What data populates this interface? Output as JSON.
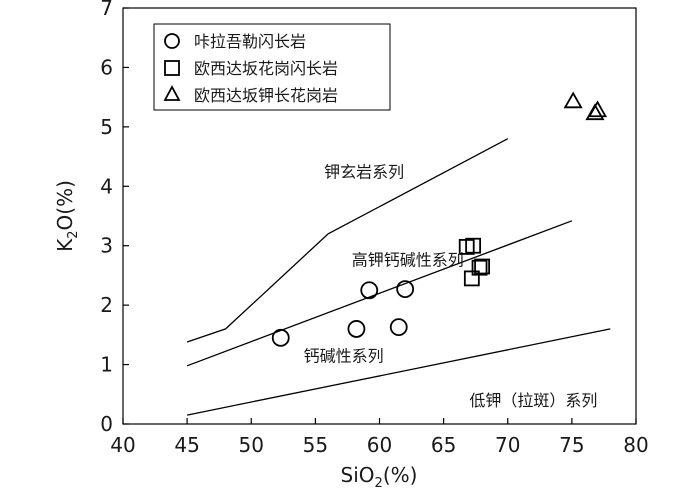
{
  "chart_data": {
    "type": "scatter",
    "title": "",
    "xlabel": {
      "base": "SiO",
      "sub": "2",
      "rest": "(%)"
    },
    "ylabel": {
      "base": "K",
      "sub": "2",
      "rest": "O(%)"
    },
    "xlim": [
      40,
      80
    ],
    "ylim": [
      0,
      7
    ],
    "xticks": [
      40,
      45,
      50,
      55,
      60,
      65,
      70,
      75,
      80
    ],
    "yticks": [
      0,
      1,
      2,
      3,
      4,
      5,
      6,
      7
    ],
    "grid": false,
    "legend": {
      "position": "top-left",
      "entries": [
        {
          "marker": "circle",
          "label": "咔拉吾勒闪长岩"
        },
        {
          "marker": "square",
          "label": "欧西达坂花岗闪长岩"
        },
        {
          "marker": "triangle",
          "label": "欧西达坂钾长花岗岩"
        }
      ]
    },
    "series": [
      {
        "name": "咔拉吾勒闪长岩",
        "marker": "circle",
        "points": [
          [
            52.3,
            1.45
          ],
          [
            58.2,
            1.6
          ],
          [
            59.2,
            2.25
          ],
          [
            61.5,
            1.63
          ],
          [
            62.0,
            2.27
          ]
        ]
      },
      {
        "name": "欧西达坂花岗闪长岩",
        "marker": "square",
        "points": [
          [
            66.8,
            2.98
          ],
          [
            67.3,
            3.0
          ],
          [
            67.2,
            2.45
          ],
          [
            67.8,
            2.63
          ],
          [
            68.0,
            2.65
          ]
        ]
      },
      {
        "name": "欧西达坂钾长花岗岩",
        "marker": "triangle",
        "points": [
          [
            75.1,
            5.43
          ],
          [
            76.8,
            5.23
          ],
          [
            77.0,
            5.28
          ]
        ]
      }
    ],
    "boundaries": [
      {
        "points": [
          [
            45,
            1.38
          ],
          [
            48,
            1.6
          ],
          [
            56,
            3.2
          ],
          [
            70,
            4.8
          ]
        ]
      },
      {
        "points": [
          [
            45,
            0.98
          ],
          [
            75,
            3.42
          ]
        ]
      },
      {
        "points": [
          [
            45,
            0.15
          ],
          [
            78,
            1.6
          ]
        ]
      }
    ],
    "field_labels": [
      {
        "text": "钾玄岩系列",
        "at": [
          58.8,
          4.25
        ]
      },
      {
        "text": "高钾钙碱性系列",
        "at": [
          62.2,
          2.77
        ]
      },
      {
        "text": "钙碱性系列",
        "at": [
          57.2,
          1.15
        ]
      },
      {
        "text": "低钾（拉斑）系列",
        "at": [
          72.0,
          0.4
        ]
      }
    ]
  }
}
